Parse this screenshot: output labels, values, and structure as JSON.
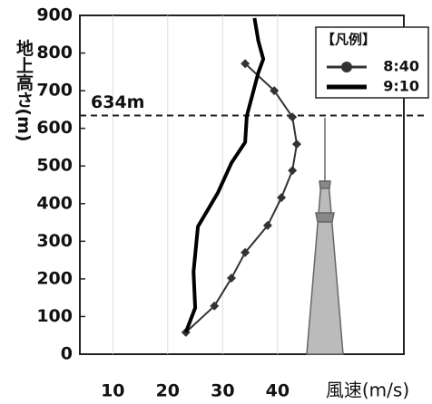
{
  "chart_data": {
    "type": "line",
    "y_label": "地上高さ(m)",
    "x_label": "風速(m/s)",
    "legend_title": "【凡例】",
    "series": [
      {
        "name": "8:40",
        "color": "#333333",
        "markers": true,
        "x": [
          23.3,
          28.5,
          31.6,
          34.1,
          38.2,
          40.7,
          42.7,
          43.5,
          42.7,
          39.4,
          34.1
        ],
        "values": [
          58,
          128,
          202,
          270,
          342,
          416,
          488,
          558,
          630,
          700,
          772
        ]
      },
      {
        "name": "9:10",
        "color": "#000000",
        "markers": false,
        "x": [
          23.3,
          25,
          24.7,
          25.5,
          29.1,
          31.6,
          34.1,
          34.4,
          36.5,
          37.4,
          36.5,
          35.8
        ],
        "values": [
          58,
          123,
          219,
          339,
          428,
          508,
          563,
          633,
          748,
          784,
          832,
          893
        ]
      }
    ],
    "reference_line": {
      "value": 634,
      "label": "634m"
    },
    "xlim": [
      4,
      63
    ],
    "xticks": [
      10,
      20,
      30,
      40
    ],
    "ylim": [
      0,
      900
    ],
    "yticks": [
      0,
      100,
      200,
      300,
      400,
      500,
      600,
      700,
      800,
      900
    ]
  }
}
